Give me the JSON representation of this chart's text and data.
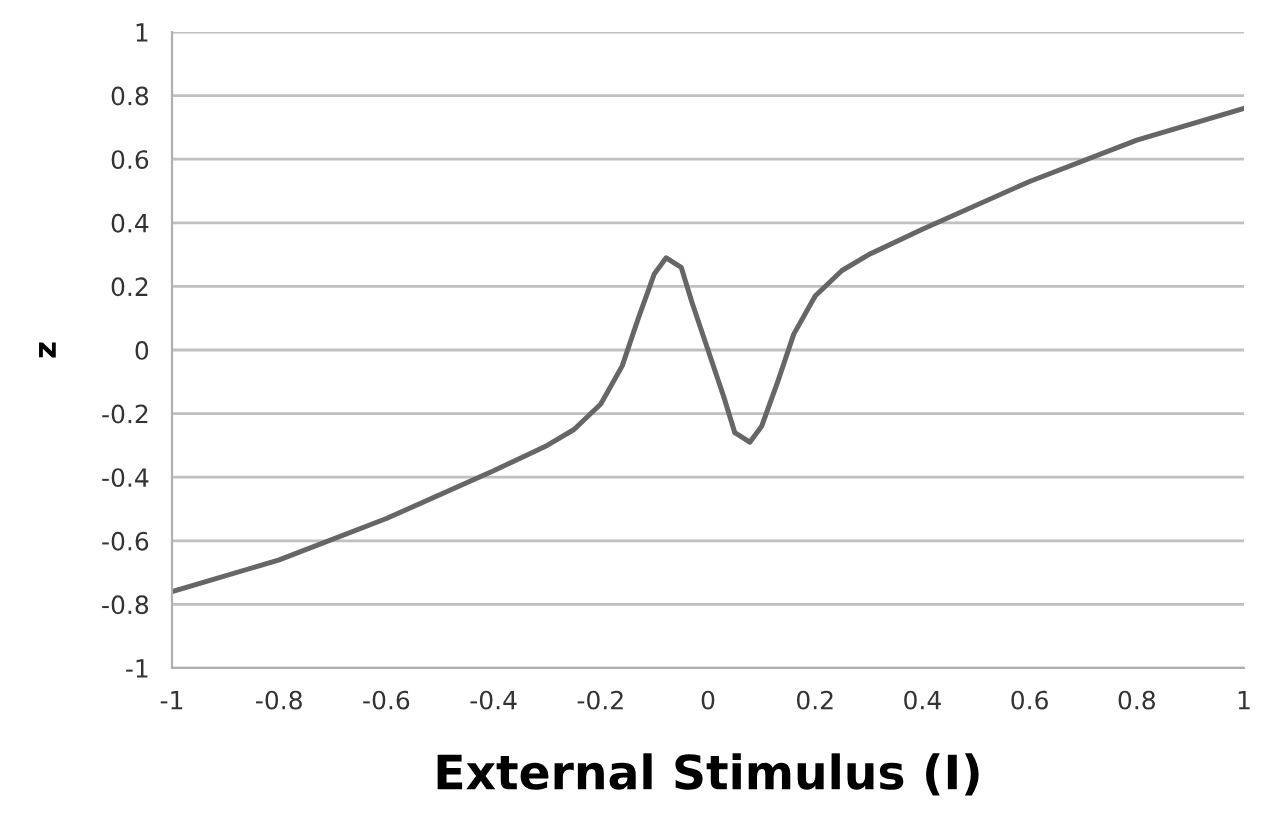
{
  "chart_data": {
    "type": "line",
    "xlabel": "External Stimulus (I)",
    "ylabel": "z",
    "x": [
      -1,
      -0.8,
      -0.6,
      -0.4,
      -0.3,
      -0.25,
      -0.2,
      -0.16,
      -0.13,
      -0.1,
      -0.078,
      -0.05,
      -0.03,
      0,
      0.03,
      0.05,
      0.078,
      0.1,
      0.13,
      0.16,
      0.2,
      0.25,
      0.3,
      0.4,
      0.6,
      0.8,
      1
    ],
    "series": [
      {
        "color": "#666666",
        "values": [
          -0.76,
          -0.66,
          -0.53,
          -0.38,
          -0.3,
          -0.25,
          -0.17,
          -0.05,
          0.1,
          0.24,
          0.29,
          0.26,
          0.15,
          0,
          -0.15,
          -0.26,
          -0.29,
          -0.24,
          -0.1,
          0.05,
          0.17,
          0.25,
          0.3,
          0.38,
          0.53,
          0.66,
          0.76
        ]
      }
    ],
    "xlim": [
      -1,
      1
    ],
    "xticks": [
      -1,
      -0.8,
      -0.6,
      -0.4,
      -0.2,
      0,
      0.2,
      0.4,
      0.6,
      0.8,
      1
    ],
    "ylim": [
      -1,
      1
    ],
    "yticks": [
      -1,
      -0.8,
      -0.6,
      -0.4,
      -0.2,
      0,
      0.2,
      0.4,
      0.6,
      0.8,
      1
    ],
    "grid": "y",
    "marker": "none",
    "line_style": "solid"
  }
}
